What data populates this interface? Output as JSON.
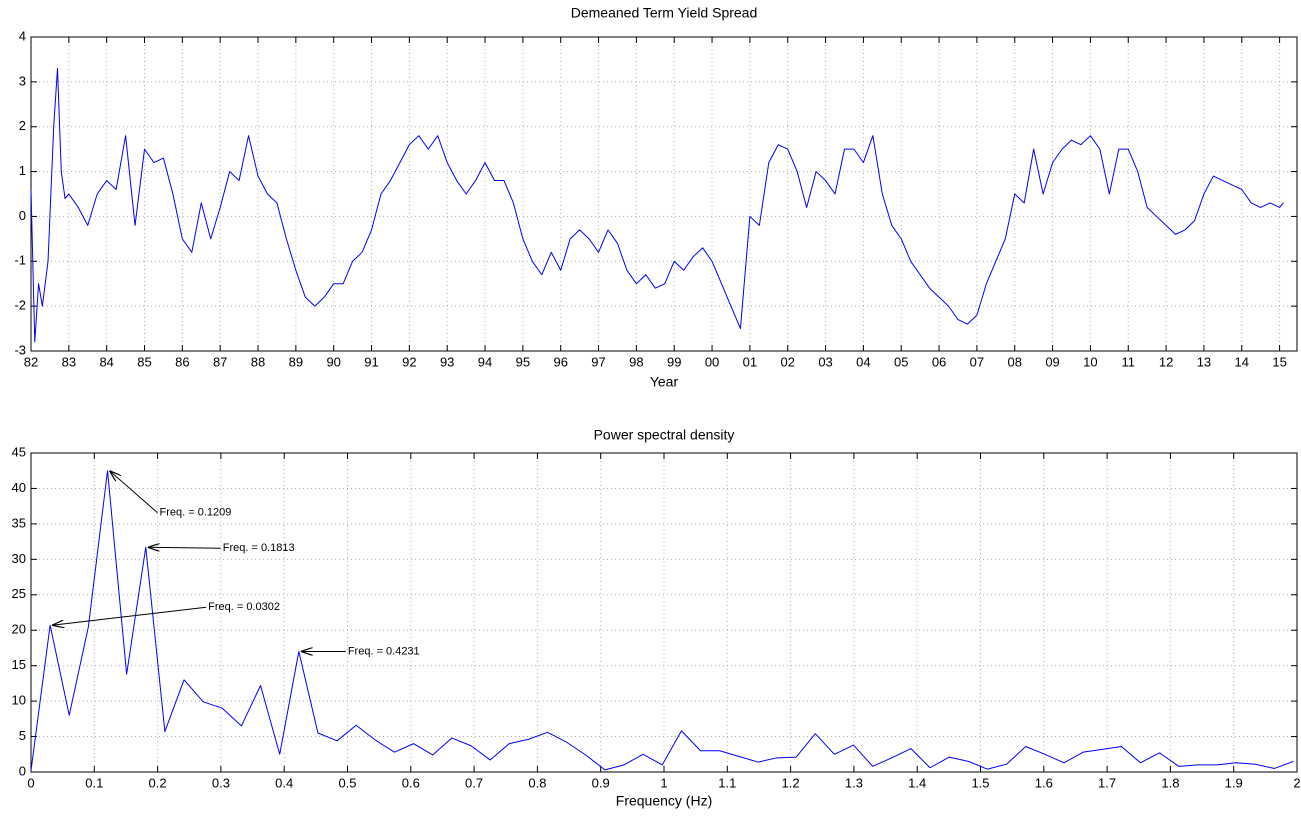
{
  "chart_data": [
    {
      "type": "line",
      "title": "Demeaned Term Yield Spread",
      "xlabel": "Year",
      "color": "#0000ff",
      "grid": true,
      "x": [
        1982,
        1982.1,
        1982.2,
        1982.3,
        1982.45,
        1982.6,
        1982.7,
        1982.8,
        1982.9,
        1983,
        1983.25,
        1983.5,
        1983.75,
        1984,
        1984.25,
        1984.5,
        1984.75,
        1985,
        1985.25,
        1985.5,
        1985.75,
        1986,
        1986.25,
        1986.5,
        1986.75,
        1987,
        1987.25,
        1987.5,
        1987.75,
        1988,
        1988.25,
        1988.5,
        1988.75,
        1989,
        1989.25,
        1989.5,
        1989.75,
        1990,
        1990.25,
        1990.5,
        1990.75,
        1991,
        1991.25,
        1991.5,
        1991.75,
        1992,
        1992.25,
        1992.5,
        1992.75,
        1993,
        1993.25,
        1993.5,
        1993.75,
        1994,
        1994.25,
        1994.5,
        1994.75,
        1995,
        1995.25,
        1995.5,
        1995.75,
        1996,
        1996.25,
        1996.5,
        1996.75,
        1997,
        1997.25,
        1997.5,
        1997.75,
        1998,
        1998.25,
        1998.5,
        1998.75,
        1999,
        1999.25,
        1999.5,
        1999.75,
        2000,
        2000.25,
        2000.5,
        2000.75,
        2001,
        2001.25,
        2001.5,
        2001.75,
        2002,
        2002.25,
        2002.5,
        2002.75,
        2003,
        2003.25,
        2003.5,
        2003.75,
        2004,
        2004.25,
        2004.5,
        2004.75,
        2005,
        2005.25,
        2005.5,
        2005.75,
        2006,
        2006.25,
        2006.5,
        2006.75,
        2007,
        2007.25,
        2007.5,
        2007.75,
        2008,
        2008.25,
        2008.5,
        2008.75,
        2009,
        2009.25,
        2009.5,
        2009.75,
        2010,
        2010.25,
        2010.5,
        2010.75,
        2011,
        2011.25,
        2011.5,
        2011.75,
        2012,
        2012.25,
        2012.5,
        2012.75,
        2013,
        2013.25,
        2013.5,
        2013.75,
        2014,
        2014.25,
        2014.5,
        2014.75,
        2015,
        2015.1
      ],
      "values": [
        0.6,
        -2.8,
        -1.5,
        -2.0,
        -1.0,
        2.0,
        3.3,
        1.0,
        0.4,
        0.5,
        0.2,
        -0.2,
        0.5,
        0.8,
        0.6,
        1.8,
        -0.2,
        1.5,
        1.2,
        1.3,
        0.5,
        -0.5,
        -0.8,
        0.3,
        -0.5,
        0.2,
        1.0,
        0.8,
        1.8,
        0.9,
        0.5,
        0.3,
        -0.5,
        -1.2,
        -1.8,
        -2.0,
        -1.8,
        -1.5,
        -1.5,
        -1.0,
        -0.8,
        -0.3,
        0.5,
        0.8,
        1.2,
        1.6,
        1.8,
        1.5,
        1.8,
        1.2,
        0.8,
        0.5,
        0.8,
        1.2,
        0.8,
        0.8,
        0.3,
        -0.5,
        -1.0,
        -1.3,
        -0.8,
        -1.2,
        -0.5,
        -0.3,
        -0.5,
        -0.8,
        -0.3,
        -0.6,
        -1.2,
        -1.5,
        -1.3,
        -1.6,
        -1.5,
        -1.0,
        -1.2,
        -0.9,
        -0.7,
        -1.0,
        -1.5,
        -2.0,
        -2.5,
        0.0,
        -0.2,
        1.2,
        1.6,
        1.5,
        1.0,
        0.2,
        1.0,
        0.8,
        0.5,
        1.5,
        1.5,
        1.2,
        1.8,
        0.5,
        -0.2,
        -0.5,
        -1.0,
        -1.3,
        -1.6,
        -1.8,
        -2.0,
        -2.3,
        -2.4,
        -2.2,
        -1.5,
        -1.0,
        -0.5,
        0.5,
        0.3,
        1.5,
        0.5,
        1.2,
        1.5,
        1.7,
        1.6,
        1.8,
        1.5,
        0.5,
        1.5,
        1.5,
        1.0,
        0.2,
        0.0,
        -0.2,
        -0.4,
        -0.3,
        -0.1,
        0.5,
        0.9,
        0.8,
        0.7,
        0.6,
        0.3,
        0.2,
        0.3,
        0.2,
        0.3
      ],
      "xlim": [
        1982,
        2015.46
      ],
      "ylim": [
        -3,
        4
      ],
      "yticks": [
        -3,
        -2,
        -1,
        0,
        1,
        2,
        3,
        4
      ],
      "xticks": [
        {
          "value": 1982,
          "label": "82"
        },
        {
          "value": 1983,
          "label": "83"
        },
        {
          "value": 1984,
          "label": "84"
        },
        {
          "value": 1985,
          "label": "85"
        },
        {
          "value": 1986,
          "label": "86"
        },
        {
          "value": 1987,
          "label": "87"
        },
        {
          "value": 1988,
          "label": "88"
        },
        {
          "value": 1989,
          "label": "89"
        },
        {
          "value": 1990,
          "label": "90"
        },
        {
          "value": 1991,
          "label": "91"
        },
        {
          "value": 1992,
          "label": "92"
        },
        {
          "value": 1993,
          "label": "93"
        },
        {
          "value": 1994,
          "label": "94"
        },
        {
          "value": 1995,
          "label": "95"
        },
        {
          "value": 1996,
          "label": "96"
        },
        {
          "value": 1997,
          "label": "97"
        },
        {
          "value": 1998,
          "label": "98"
        },
        {
          "value": 1999,
          "label": "99"
        },
        {
          "value": 2000,
          "label": "00"
        },
        {
          "value": 2001,
          "label": "01"
        },
        {
          "value": 2002,
          "label": "02"
        },
        {
          "value": 2003,
          "label": "03"
        },
        {
          "value": 2004,
          "label": "04"
        },
        {
          "value": 2005,
          "label": "05"
        },
        {
          "value": 2006,
          "label": "06"
        },
        {
          "value": 2007,
          "label": "07"
        },
        {
          "value": 2008,
          "label": "08"
        },
        {
          "value": 2009,
          "label": "09"
        },
        {
          "value": 2010,
          "label": "10"
        },
        {
          "value": 2011,
          "label": "11"
        },
        {
          "value": 2012,
          "label": "12"
        },
        {
          "value": 2013,
          "label": "13"
        },
        {
          "value": 2014,
          "label": "14"
        },
        {
          "value": 2015,
          "label": "15"
        }
      ]
    },
    {
      "type": "line",
      "title": "Power spectral density",
      "xlabel": "Frequency (Hz)",
      "color": "#0000ff",
      "grid": true,
      "x": [
        0,
        0.0302,
        0.0604,
        0.0907,
        0.1209,
        0.1511,
        0.1813,
        0.2115,
        0.2418,
        0.272,
        0.3022,
        0.3324,
        0.3626,
        0.3929,
        0.4231,
        0.4533,
        0.4835,
        0.5137,
        0.544,
        0.5742,
        0.6044,
        0.6346,
        0.6648,
        0.6951,
        0.7253,
        0.7555,
        0.7857,
        0.8159,
        0.8462,
        0.8764,
        0.9066,
        0.9368,
        0.967,
        0.9973,
        1.0275,
        1.0577,
        1.0879,
        1.1181,
        1.1484,
        1.1786,
        1.2088,
        1.239,
        1.2692,
        1.2995,
        1.3297,
        1.3599,
        1.3901,
        1.4203,
        1.4506,
        1.4808,
        1.511,
        1.5412,
        1.5714,
        1.6017,
        1.6319,
        1.6621,
        1.6923,
        1.7225,
        1.7528,
        1.783,
        1.8132,
        1.8434,
        1.8736,
        1.9039,
        1.9341,
        1.9643,
        1.9945
      ],
      "values": [
        0.2,
        20.7,
        8,
        20.5,
        42.5,
        13.8,
        31.7,
        5.7,
        13,
        9.9,
        9,
        6.5,
        12.2,
        2.5,
        17,
        5.5,
        4.4,
        6.6,
        4.5,
        2.8,
        4,
        2.4,
        4.8,
        3.7,
        1.7,
        4,
        4.6,
        5.6,
        4.2,
        2.4,
        0.3,
        1,
        2.5,
        1,
        5.8,
        3,
        3,
        2.2,
        1.4,
        2,
        2.1,
        5.4,
        2.5,
        3.8,
        0.8,
        2,
        3.3,
        0.6,
        2.1,
        1.5,
        0.4,
        1.1,
        3.6,
        2.5,
        1.3,
        2.8,
        3.2,
        3.6,
        1.3,
        2.7,
        0.8,
        1,
        1,
        1.3,
        1.1,
        0.5,
        1.5
      ],
      "xlim": [
        0,
        2
      ],
      "ylim": [
        0,
        45
      ],
      "yticks": [
        0,
        5,
        10,
        15,
        20,
        25,
        30,
        35,
        40,
        45
      ],
      "xticks": [
        0,
        0.1,
        0.2,
        0.3,
        0.4,
        0.5,
        0.6,
        0.7,
        0.8,
        0.9,
        1,
        1.1,
        1.2,
        1.3,
        1.4,
        1.5,
        1.6,
        1.7,
        1.8,
        1.9,
        2
      ],
      "annotations": [
        {
          "text": "Freq. = 0.1209",
          "x": 0.1209,
          "y": 42.5
        },
        {
          "text": "Freq. = 0.1813",
          "x": 0.1813,
          "y": 31.7
        },
        {
          "text": "Freq. = 0.0302",
          "x": 0.0302,
          "y": 20.7
        },
        {
          "text": "Freq. = 0.4231",
          "x": 0.4231,
          "y": 17
        }
      ]
    }
  ]
}
